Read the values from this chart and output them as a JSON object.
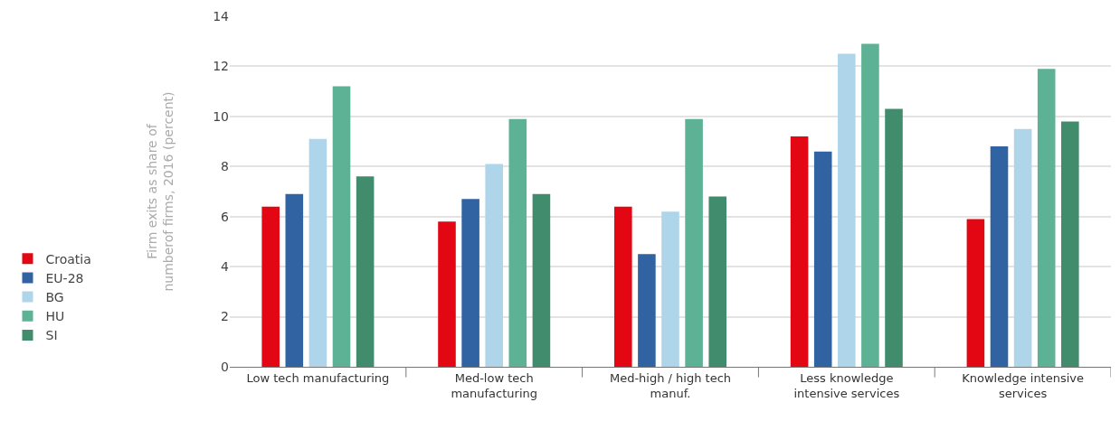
{
  "chart_data": {
    "type": "bar",
    "ylabel": "Firm exits as share of numberof firms, 2016 (percent)",
    "categories": [
      "Low tech manufacturing",
      "Med-low tech manufacturing",
      "Med-high / high tech manuf.",
      "Less knowledge intensive services",
      "Knowledge intensive services"
    ],
    "series": [
      {
        "name": "Croatia",
        "color": "#e30613",
        "values": [
          6.4,
          5.8,
          6.4,
          9.2,
          5.9
        ]
      },
      {
        "name": "EU-28",
        "color": "#3163a3",
        "values": [
          6.9,
          6.7,
          4.5,
          8.6,
          8.8
        ]
      },
      {
        "name": "BG",
        "color": "#afd5ea",
        "values": [
          9.1,
          8.1,
          6.2,
          12.5,
          9.5
        ]
      },
      {
        "name": "HU",
        "color": "#5db195",
        "values": [
          11.2,
          9.9,
          9.9,
          12.9,
          11.9
        ]
      },
      {
        "name": "SI",
        "color": "#408c6d",
        "values": [
          7.6,
          6.9,
          6.8,
          10.3,
          9.8
        ]
      }
    ],
    "ylim": [
      0,
      14
    ],
    "yticks": [
      0,
      2,
      4,
      6,
      8,
      10,
      12,
      14
    ],
    "grid": "y",
    "legend": "left"
  }
}
